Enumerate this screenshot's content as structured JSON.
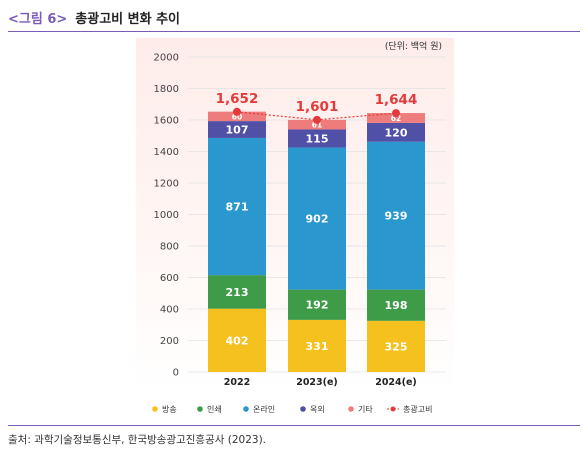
{
  "figure": {
    "number": "<그림 6>",
    "title": "총광고비 변화 추이",
    "unit_note": "(단위: 백억 원)",
    "source": "출처: 과학기술정보통신부, 한국방송광고진흥공사 (2023)."
  },
  "colors": {
    "broadcast": "#f5c11e",
    "print": "#3e9b48",
    "online": "#2b97cf",
    "outdoor": "#5051a6",
    "other": "#ef7c7c",
    "total": "#e23b3b",
    "accent": "#7a5bb8"
  },
  "chart_data": {
    "type": "bar",
    "stacked": true,
    "categories": [
      "2022",
      "2023(e)",
      "2024(e)"
    ],
    "series": [
      {
        "name": "방송",
        "key": "broadcast",
        "values": [
          402,
          331,
          325
        ]
      },
      {
        "name": "인쇄",
        "key": "print",
        "values": [
          213,
          192,
          198
        ]
      },
      {
        "name": "온라인",
        "key": "online",
        "values": [
          871,
          902,
          939
        ]
      },
      {
        "name": "옥외",
        "key": "outdoor",
        "values": [
          107,
          115,
          120
        ]
      },
      {
        "name": "기타",
        "key": "other",
        "values": [
          60,
          61,
          62
        ]
      }
    ],
    "total": {
      "name": "총광고비",
      "values": [
        "1,652",
        "1,601",
        "1,644"
      ],
      "numeric": [
        1652,
        1601,
        1644
      ]
    },
    "ylim": [
      0,
      2000
    ],
    "yticks": [
      0,
      200,
      400,
      600,
      800,
      1000,
      1200,
      1400,
      1600,
      1800,
      2000
    ],
    "grid": true,
    "legend_position": "bottom"
  }
}
